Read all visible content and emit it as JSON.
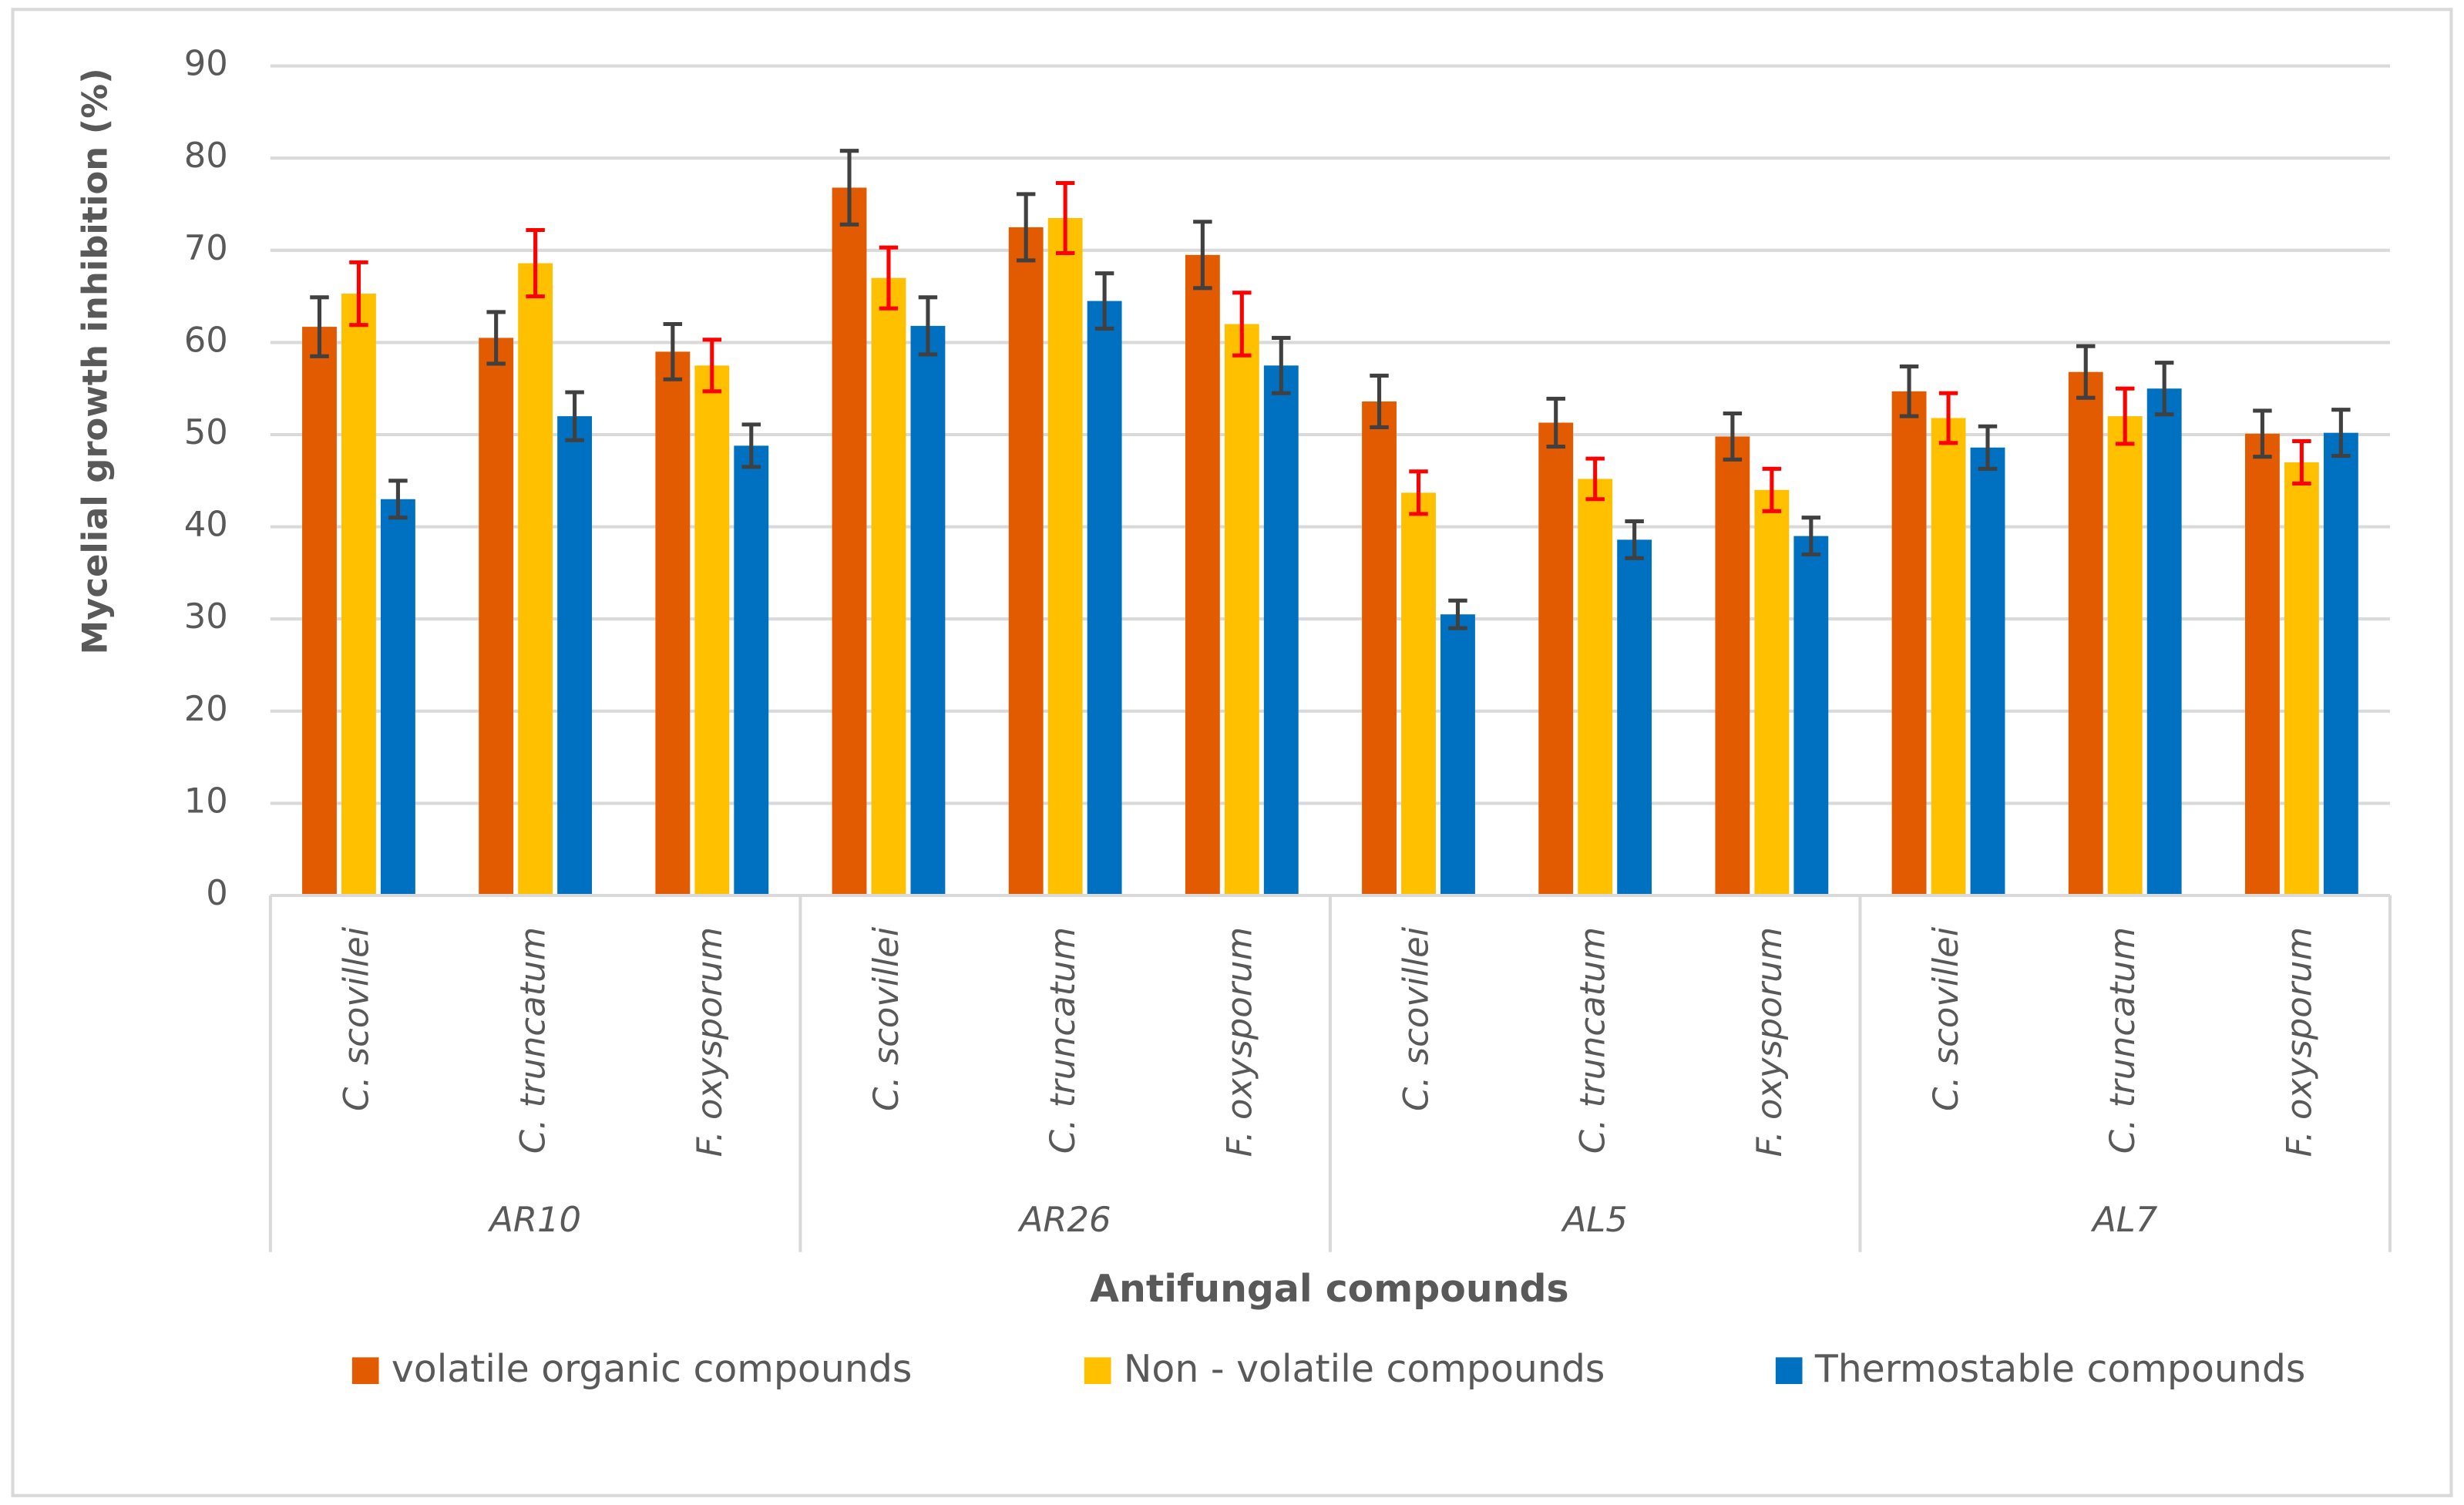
{
  "chart_data": {
    "type": "bar",
    "y_label": "Mycelial growth inhibition (%)",
    "x_label": "Antifungal compounds",
    "categories": [
      "C. scovillei",
      "C. truncatum",
      "F. oxysporum",
      "C. scovillei",
      "C. truncatum",
      "F. oxysporum",
      "C. scovillei",
      "C. truncatum",
      "F. oxysporum",
      "C. scovillei",
      "C. truncatum",
      "F. oxysporum"
    ],
    "groups": [
      "AR10",
      "AR26",
      "AL5",
      "AL7"
    ],
    "series": [
      {
        "name": "volatile organic compounds",
        "color": "#e35b00",
        "error_color": "#404040",
        "values": [
          61.7,
          60.5,
          59,
          76.8,
          72.5,
          69.5,
          53.6,
          51.3,
          49.8,
          54.7,
          56.8,
          50.1
        ],
        "errors": [
          3.2,
          2.8,
          3,
          4,
          3.6,
          3.6,
          2.8,
          2.6,
          2.5,
          2.7,
          2.8,
          2.5
        ]
      },
      {
        "name": "Non - volatile compounds",
        "color": "#ffc000",
        "error_color": "#ff0000",
        "values": [
          65.3,
          68.6,
          57.5,
          67,
          73.5,
          62,
          43.7,
          45.2,
          44,
          51.8,
          52,
          47
        ],
        "errors": [
          3.4,
          3.6,
          2.8,
          3.3,
          3.8,
          3.4,
          2.3,
          2.2,
          2.3,
          2.7,
          3,
          2.3
        ]
      },
      {
        "name": "Thermostable compounds",
        "color": "#0070c0",
        "error_color": "#404040",
        "values": [
          43,
          52,
          48.8,
          61.8,
          64.5,
          57.5,
          30.5,
          38.6,
          39,
          48.6,
          55,
          50.2
        ],
        "errors": [
          2,
          2.6,
          2.3,
          3.1,
          3,
          3,
          1.5,
          2,
          2,
          2.3,
          2.8,
          2.5
        ]
      }
    ],
    "ylim": [
      0,
      90
    ],
    "yticks": [
      0,
      10,
      20,
      30,
      40,
      50,
      60,
      70,
      80,
      90
    ],
    "grid": true,
    "legend": "bottom"
  }
}
